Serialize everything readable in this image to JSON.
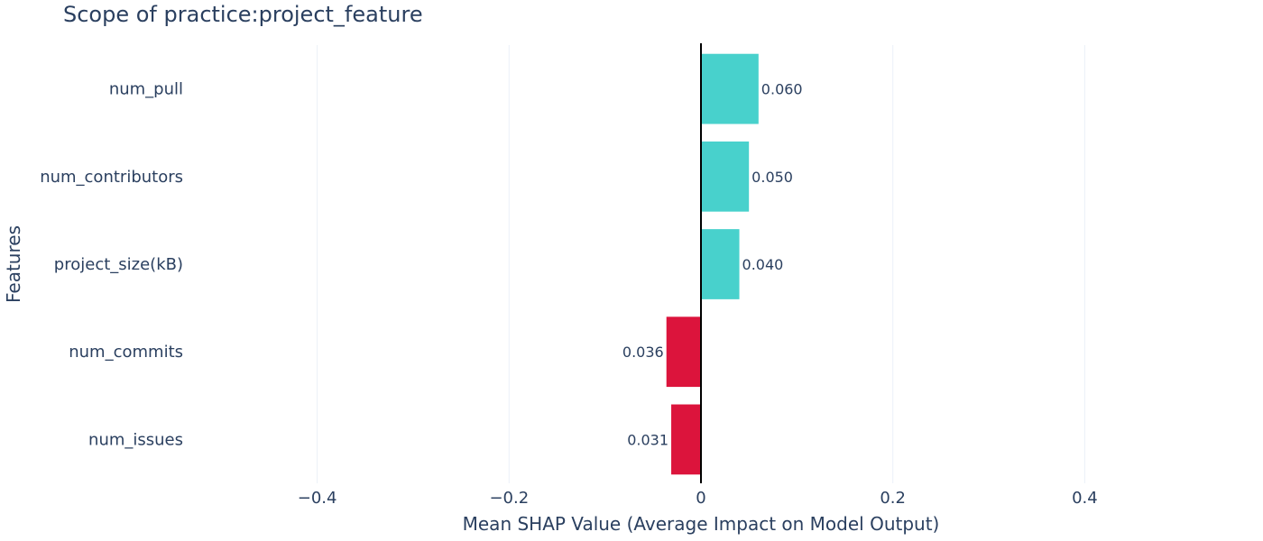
{
  "chart_data": {
    "type": "bar",
    "orientation": "horizontal",
    "title": "Scope of practice:project_feature",
    "xlabel": "Mean SHAP Value (Average Impact on Model Output)",
    "ylabel": "Features",
    "categories": [
      "num_pull",
      "num_contributors",
      "project_size(kB)",
      "num_commits",
      "num_issues"
    ],
    "values": [
      0.06,
      0.05,
      0.04,
      -0.036,
      -0.031
    ],
    "data_labels": [
      "0.060",
      "0.050",
      "0.040",
      "0.036",
      "0.031"
    ],
    "xlim": [
      -0.52,
      0.52
    ],
    "xticks": [
      -0.4,
      -0.2,
      0,
      0.2,
      0.4
    ],
    "xtick_labels": [
      "−0.4",
      "−0.2",
      "0",
      "0.2",
      "0.4"
    ],
    "grid": true,
    "colors": {
      "positive": "#48d1cc",
      "negative": "#dc143c",
      "zero_line": "#000000",
      "grid": "#ebf0f8"
    }
  }
}
